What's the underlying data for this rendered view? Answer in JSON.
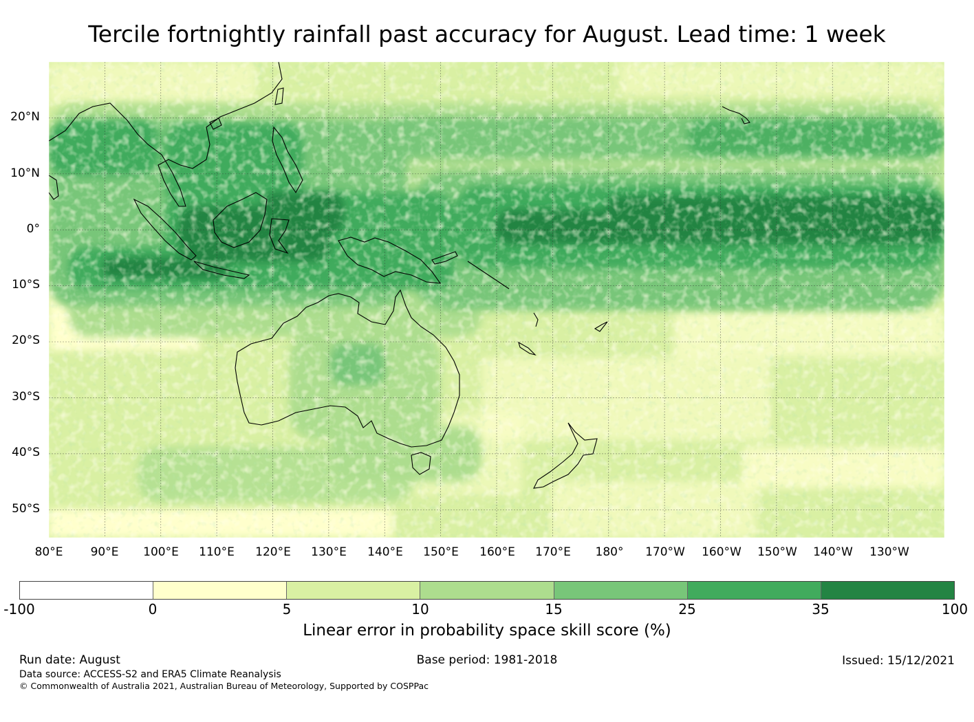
{
  "title": "Tercile fortnightly rainfall past accuracy for August. Lead time: 1 week",
  "map": {
    "lat_labels": [
      "20°N",
      "10°N",
      "0°",
      "10°S",
      "20°S",
      "30°S",
      "40°S",
      "50°S"
    ],
    "lon_labels": [
      "80°E",
      "90°E",
      "100°E",
      "110°E",
      "120°E",
      "130°E",
      "140°E",
      "150°E",
      "160°E",
      "170°E",
      "180°",
      "170°W",
      "160°W",
      "150°W",
      "140°W",
      "130°W"
    ],
    "lat_range": [
      -55,
      30
    ],
    "lon_range": [
      80,
      240
    ],
    "gridlines": true
  },
  "colorbar": {
    "colors": [
      "#ffffff",
      "#ffffcc",
      "#d9f0a3",
      "#addd8e",
      "#78c679",
      "#41ab5d",
      "#238443"
    ],
    "ticks": [
      "-100",
      "0",
      "5",
      "10",
      "15",
      "25",
      "35",
      "100"
    ],
    "label": "Linear error in probability space skill score (%)"
  },
  "footer": {
    "run_date": "Run date: August",
    "base_period": "Base period: 1981-2018",
    "issued": "Issued: 15/12/2021",
    "data_source": "Data source: ACCESS-S2 and ERA5 Climate Reanalysis",
    "copyright": "© Commonwealth of Australia 2021, Australian Bureau of Meteorology, Supported by COSPPac"
  }
}
